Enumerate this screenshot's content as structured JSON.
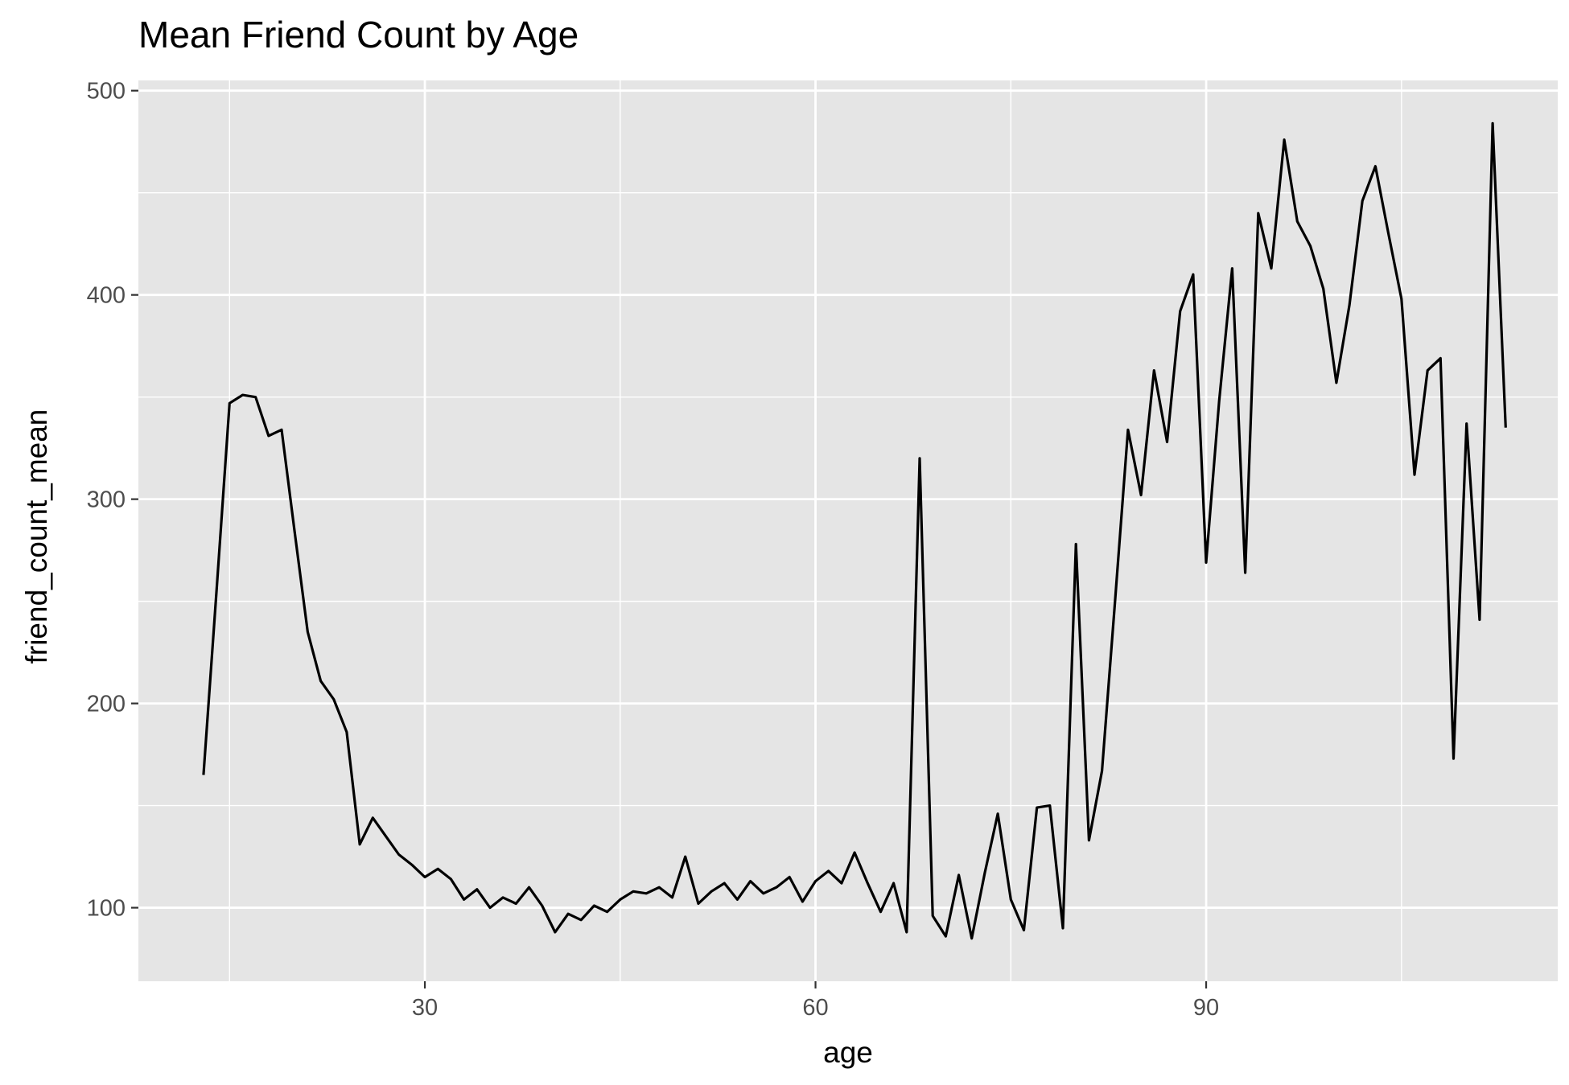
{
  "chart_data": {
    "type": "line",
    "title": "Mean Friend Count by Age",
    "xlabel": "age",
    "ylabel": "friend_count_mean",
    "xlim": [
      8,
      117
    ],
    "ylim": [
      64,
      505
    ],
    "x_ticks": [
      30,
      60,
      90
    ],
    "x_minor_ticks": [
      15,
      45,
      75,
      105
    ],
    "y_ticks": [
      100,
      200,
      300,
      400,
      500
    ],
    "y_minor_ticks": [
      150,
      250,
      350,
      450
    ],
    "grid": true,
    "colors": {
      "panel": "#e5e5e5",
      "grid": "#ffffff",
      "line": "#000000",
      "tick_text": "#4d4d4d"
    },
    "series": [
      {
        "x": [
          13,
          14,
          15,
          16,
          17,
          18,
          19,
          20,
          21,
          22,
          23,
          24,
          25,
          26,
          27,
          28,
          29,
          30,
          31,
          32,
          33,
          34,
          35,
          36,
          37,
          38,
          39,
          40,
          41,
          42,
          43,
          44,
          45,
          46,
          47,
          48,
          49,
          50,
          51,
          52,
          53,
          54,
          55,
          56,
          57,
          58,
          59,
          60,
          61,
          62,
          63,
          64,
          65,
          66,
          67,
          68,
          69,
          70,
          71,
          72,
          73,
          74,
          75,
          76,
          77,
          78,
          79,
          80,
          81,
          82,
          83,
          84,
          85,
          86,
          87,
          88,
          89,
          90,
          91,
          92,
          93,
          94,
          95,
          96,
          97,
          98,
          99,
          100,
          101,
          102,
          103,
          104,
          105,
          106,
          107,
          108,
          109,
          110,
          111,
          112,
          113
        ],
        "y": [
          165,
          255,
          347,
          351,
          350,
          331,
          334,
          284,
          235,
          211,
          202,
          186,
          131,
          144,
          135,
          126,
          121,
          115,
          119,
          114,
          104,
          109,
          100,
          105,
          102,
          110,
          101,
          88,
          97,
          94,
          101,
          98,
          104,
          108,
          107,
          110,
          105,
          125,
          102,
          108,
          112,
          104,
          113,
          107,
          110,
          115,
          103,
          113,
          118,
          112,
          127,
          112,
          98,
          112,
          88,
          320,
          96,
          86,
          116,
          85,
          117,
          146,
          104,
          89,
          149,
          150,
          90,
          278,
          133,
          167,
          250,
          334,
          302,
          363,
          328,
          392,
          410,
          269,
          348,
          413,
          264,
          440,
          413,
          476,
          436,
          424,
          403,
          357,
          395,
          446,
          463,
          430,
          398,
          312,
          363,
          369,
          173,
          337,
          241,
          484,
          335
        ]
      }
    ]
  }
}
